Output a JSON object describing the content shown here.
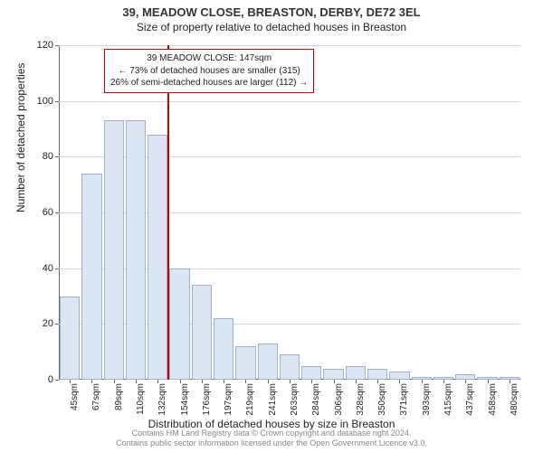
{
  "title": "39, MEADOW CLOSE, BREASTON, DERBY, DE72 3EL",
  "subtitle": "Size of property relative to detached houses in Breaston",
  "chart": {
    "type": "histogram",
    "y_axis_title": "Number of detached properties",
    "x_axis_title": "Distribution of detached houses by size in Breaston",
    "ylim": [
      0,
      120
    ],
    "y_tick_step": 20,
    "y_ticks": [
      0,
      20,
      40,
      60,
      80,
      100,
      120
    ],
    "bar_fill": "#dbe5f4",
    "bar_border": "#9fb2cc",
    "grid_color": "#d8d8d8",
    "x_labels": [
      "45sqm",
      "67sqm",
      "89sqm",
      "110sqm",
      "132sqm",
      "154sqm",
      "176sqm",
      "197sqm",
      "219sqm",
      "241sqm",
      "263sqm",
      "284sqm",
      "306sqm",
      "328sqm",
      "350sqm",
      "371sqm",
      "393sqm",
      "415sqm",
      "437sqm",
      "458sqm",
      "480sqm"
    ],
    "bar_values": [
      30,
      74,
      93,
      93,
      88,
      40,
      34,
      22,
      12,
      13,
      9,
      5,
      4,
      5,
      4,
      3,
      1,
      1,
      2,
      1,
      1
    ],
    "marker": {
      "label_index": 5,
      "color": "#cc0000"
    },
    "annotation": {
      "line1": "39 MEADOW CLOSE: 147sqm",
      "line2": "← 73% of detached houses are smaller (315)",
      "line3": "26% of semi-detached houses are larger (112) →",
      "border_color": "#cc0000"
    }
  },
  "credits": {
    "line1": "Contains HM Land Registry data © Crown copyright and database right 2024.",
    "line2": "Contains public sector information licensed under the Open Government Licence v3.0."
  }
}
